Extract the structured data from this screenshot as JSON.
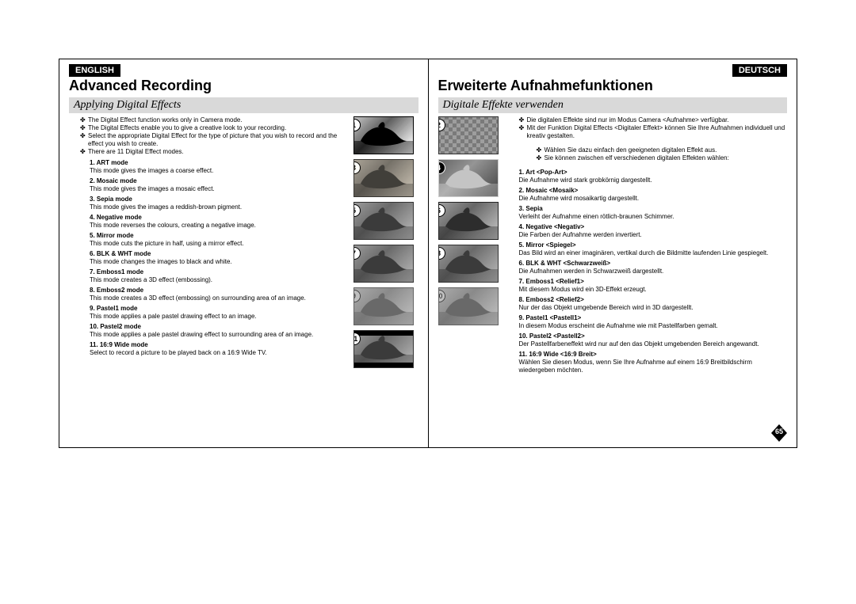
{
  "page_number": "65",
  "left": {
    "lang": "ENGLISH",
    "title": "Advanced Recording",
    "subtitle": "Applying Digital Effects",
    "bullets": [
      "The Digital Effect function works only in Camera mode.",
      "The Digital Effects enable you to give a creative look to your recording.",
      "Select the appropriate Digital Effect for the type of picture that you wish to record and the effect you wish to create.",
      "There are 11 Digital Effect modes."
    ],
    "modes": [
      {
        "n": "1.",
        "name": "ART mode",
        "desc": "This mode gives the images a coarse effect."
      },
      {
        "n": "2.",
        "name": "Mosaic mode",
        "desc": "This mode gives the images a mosaic effect."
      },
      {
        "n": "3.",
        "name": "Sepia mode",
        "desc": "This mode gives the images a reddish-brown pigment."
      },
      {
        "n": "4.",
        "name": "Negative mode",
        "desc": "This mode reverses the colours, creating a negative image."
      },
      {
        "n": "5.",
        "name": "Mirror mode",
        "desc": "This mode cuts the picture in half, using a mirror effect."
      },
      {
        "n": "6.",
        "name": "BLK & WHT mode",
        "desc": "This mode changes the images to black and white."
      },
      {
        "n": "7.",
        "name": "Emboss1 mode",
        "desc": "This mode creates a 3D effect (embossing)."
      },
      {
        "n": "8.",
        "name": "Emboss2 mode",
        "desc": "This mode creates a 3D effect (embossing) on surrounding area of an image."
      },
      {
        "n": "9.",
        "name": "Pastel1 mode",
        "desc": "This mode applies a pale pastel drawing effect to an image."
      },
      {
        "n": "10.",
        "name": "Pastel2 mode",
        "desc": "This mode applies a pale pastel drawing effect to surrounding area of an image."
      },
      {
        "n": "11.",
        "name": "16:9 Wide mode",
        "desc": "Select to record a picture to be played back on a 16:9 Wide TV."
      }
    ]
  },
  "right": {
    "lang": "DEUTSCH",
    "title": "Erweiterte Aufnahmefunktionen",
    "subtitle": "Digitale Effekte verwenden",
    "bullets": [
      "Die digitalen Effekte sind nur im Modus Camera <Aufnahme> verfügbar.",
      "Mit der Funktion Digital Effects <Digitaler Effekt> können Sie Ihre Aufnahmen individuell und kreativ gestalten."
    ],
    "sub_bullets": [
      "Wählen Sie dazu einfach den geeigneten digitalen Effekt aus.",
      "Sie können zwischen elf verschiedenen digitalen Effekten wählen:"
    ],
    "modes": [
      {
        "n": "1.",
        "name": "Art <Pop-Art>",
        "desc": "Die Aufnahme wird stark grobkörnig dargestellt."
      },
      {
        "n": "2.",
        "name": "Mosaic <Mosaik>",
        "desc": "Die Aufnahme wird mosaikartig dargestellt."
      },
      {
        "n": "3.",
        "name": "Sepia",
        "desc": "Verleiht der Aufnahme einen rötlich-braunen Schimmer."
      },
      {
        "n": "4.",
        "name": "Negative <Negativ>",
        "desc": "Die Farben der Aufnahme werden invertiert."
      },
      {
        "n": "5.",
        "name": "Mirror <Spiegel>",
        "desc": "Das Bild wird an einer imaginären, vertikal durch die Bildmitte laufenden Linie gespiegelt."
      },
      {
        "n": "6.",
        "name": "BLK & WHT <Schwarzweiß>",
        "desc": "Die Aufnahmen werden in Schwarzweiß dargestellt."
      },
      {
        "n": "7.",
        "name": "Emboss1 <Relief1>",
        "desc": "Mit diesem Modus wird ein 3D-Effekt erzeugt."
      },
      {
        "n": "8.",
        "name": "Emboss2 <Relief2>",
        "desc": "Nur der das Objekt umgebende Bereich wird in 3D dargestellt."
      },
      {
        "n": "9.",
        "name": "Pastel1 <Pastell1>",
        "desc": "In diesem Modus erscheint die Aufnahme wie mit Pastellfarben gemalt."
      },
      {
        "n": "10.",
        "name": "Pastel2 <Pastell2>",
        "desc": "Der Pastellfarbeneffekt wird nur auf den das Objekt umgebenden Bereich angewandt."
      },
      {
        "n": "11.",
        "name": "16:9 Wide <16:9 Breit>",
        "desc": "Wählen Sie diesen Modus, wenn Sie Ihre Aufnahme auf einem 16:9 Breitbildschirm wiedergeben möchten."
      }
    ]
  },
  "thumbs": {
    "left_nums": [
      "1",
      "3",
      "5",
      "7",
      "9",
      "11"
    ],
    "right_nums": [
      "2",
      "4",
      "6",
      "8",
      "10"
    ],
    "left_eff": [
      "eff-art",
      "eff-sepia",
      "",
      "",
      "eff-pastel",
      "eff-wide"
    ],
    "right_eff": [
      "eff-mosaic",
      "eff-neg",
      "eff-blkwht",
      "",
      "eff-pastel"
    ]
  }
}
